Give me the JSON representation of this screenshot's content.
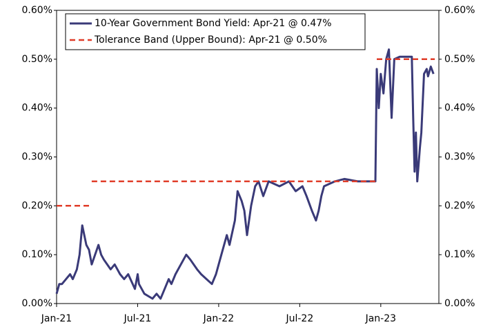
{
  "chart_data": {
    "type": "line",
    "xlim": [
      0,
      28.3
    ],
    "xticks": [
      {
        "value": 0,
        "label": "Jan-21"
      },
      {
        "value": 6,
        "label": "Jul-21"
      },
      {
        "value": 12,
        "label": "Jan-22"
      },
      {
        "value": 18,
        "label": "Jul-22"
      },
      {
        "value": 24,
        "label": "Jan-23"
      }
    ],
    "ylim": [
      0,
      0.6
    ],
    "yticks": [
      {
        "value": 0,
        "label": "0.00%"
      },
      {
        "value": 0.1,
        "label": "0.10%"
      },
      {
        "value": 0.2,
        "label": "0.20%"
      },
      {
        "value": 0.3,
        "label": "0.30%"
      },
      {
        "value": 0.4,
        "label": "0.40%"
      },
      {
        "value": 0.5,
        "label": "0.50%"
      },
      {
        "value": 0.6,
        "label": "0.60%"
      }
    ],
    "y2lim": [
      0,
      0.6
    ],
    "y2ticks": [
      {
        "value": 0,
        "label": "0.00%"
      },
      {
        "value": 0.1,
        "label": "0.10%"
      },
      {
        "value": 0.2,
        "label": "0.20%"
      },
      {
        "value": 0.3,
        "label": "0.30%"
      },
      {
        "value": 0.4,
        "label": "0.40%"
      },
      {
        "value": 0.5,
        "label": "0.50%"
      },
      {
        "value": 0.6,
        "label": "0.60%"
      }
    ],
    "legend": "upper left",
    "series": [
      {
        "name": "10-Year Government Bond Yield: Apr-21 @ 0.47%",
        "color": "#3a3a78",
        "dash": false,
        "x": [
          0,
          0.2,
          0.4,
          0.7,
          1.0,
          1.2,
          1.5,
          1.7,
          1.8,
          1.9,
          2.2,
          2.4,
          2.6,
          3.1,
          3.3,
          3.5,
          4.0,
          4.3,
          4.7,
          5.0,
          5.3,
          5.8,
          6.0,
          6.1,
          6.5,
          7.1,
          7.4,
          7.7,
          8.0,
          8.3,
          8.5,
          8.8,
          9.2,
          9.6,
          9.9,
          10.4,
          10.7,
          11.1,
          11.5,
          11.8,
          12.0,
          12.2,
          12.6,
          12.8,
          13.2,
          13.4,
          13.7,
          13.9,
          14.1,
          14.4,
          14.7,
          14.95,
          15.3,
          15.7,
          16.5,
          17.2,
          17.7,
          18.2,
          18.5,
          18.9,
          19.2,
          19.4,
          19.6,
          19.8,
          20.6,
          21.3,
          22.3,
          23.6,
          23.7,
          23.85,
          24.0,
          24.2,
          24.4,
          24.6,
          24.8,
          25.0,
          25.4,
          26.3,
          26.4,
          26.5,
          26.6,
          26.7,
          26.9,
          27.0,
          27.2,
          27.4,
          27.5,
          27.7,
          27.9
        ],
        "values": [
          0.02,
          0.04,
          0.04,
          0.05,
          0.06,
          0.05,
          0.07,
          0.1,
          0.13,
          0.16,
          0.12,
          0.11,
          0.08,
          0.12,
          0.1,
          0.09,
          0.07,
          0.08,
          0.06,
          0.05,
          0.06,
          0.03,
          0.06,
          0.04,
          0.02,
          0.01,
          0.02,
          0.01,
          0.03,
          0.05,
          0.04,
          0.06,
          0.08,
          0.1,
          0.09,
          0.07,
          0.06,
          0.05,
          0.04,
          0.06,
          0.08,
          0.1,
          0.14,
          0.12,
          0.17,
          0.23,
          0.21,
          0.19,
          0.14,
          0.2,
          0.24,
          0.25,
          0.22,
          0.25,
          0.24,
          0.25,
          0.23,
          0.24,
          0.22,
          0.19,
          0.17,
          0.19,
          0.22,
          0.24,
          0.25,
          0.255,
          0.25,
          0.25,
          0.48,
          0.4,
          0.47,
          0.43,
          0.5,
          0.52,
          0.38,
          0.5,
          0.505,
          0.505,
          0.38,
          0.27,
          0.35,
          0.25,
          0.32,
          0.35,
          0.47,
          0.48,
          0.465,
          0.485,
          0.47
        ]
      },
      {
        "name": "Tolerance Band (Upper Bound): Apr-21 @ 0.50%",
        "color": "#e03c28",
        "dash": true,
        "x": [
          0,
          2.6,
          2.6,
          2.6,
          23.7,
          23.7,
          23.7,
          28.0
        ],
        "values": [
          0.2,
          0.2,
          null,
          0.25,
          0.25,
          null,
          0.5,
          0.5
        ]
      }
    ]
  }
}
